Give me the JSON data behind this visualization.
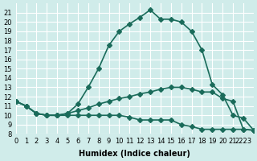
{
  "xlabel": "Humidex (Indice chaleur)",
  "ylabel": "",
  "bg_color": "#d0ecea",
  "line_color": "#1a6b5a",
  "grid_color": "#ffffff",
  "ylim": [
    8,
    22
  ],
  "xlim": [
    0,
    23
  ],
  "yticks": [
    8,
    9,
    10,
    11,
    12,
    13,
    14,
    15,
    16,
    17,
    18,
    19,
    20,
    21
  ],
  "xticks": [
    0,
    1,
    2,
    3,
    4,
    5,
    6,
    7,
    8,
    9,
    10,
    11,
    12,
    13,
    14,
    15,
    16,
    17,
    18,
    19,
    20,
    21,
    22
  ],
  "xtick_labels": [
    "0",
    "1",
    "2",
    "3",
    "4",
    "5",
    "6",
    "7",
    "8",
    "9",
    "10",
    "11",
    "12",
    "13",
    "14",
    "15",
    "16",
    "17",
    "18",
    "19",
    "20",
    "21",
    "2223"
  ],
  "line1_x": [
    0,
    1,
    2,
    3,
    4,
    5,
    6,
    7,
    8,
    9,
    10,
    11,
    12,
    13,
    14,
    15,
    16,
    17,
    18,
    19,
    20,
    21,
    22,
    23
  ],
  "line1_y": [
    11.5,
    11.0,
    10.2,
    10.0,
    10.0,
    10.2,
    11.2,
    13.0,
    15.0,
    17.5,
    19.0,
    19.8,
    20.5,
    21.3,
    20.3,
    20.3,
    20.0,
    19.0,
    17.0,
    13.3,
    12.2,
    10.0,
    9.7,
    8.4
  ],
  "line2_x": [
    0,
    1,
    2,
    3,
    4,
    5,
    6,
    7,
    8,
    9,
    10,
    11,
    12,
    13,
    14,
    15,
    16,
    17,
    18,
    19,
    20,
    21,
    22,
    23
  ],
  "line2_y": [
    11.5,
    11.0,
    10.2,
    10.0,
    10.0,
    10.2,
    10.5,
    10.8,
    11.2,
    11.5,
    11.8,
    12.0,
    12.3,
    12.5,
    12.8,
    13.0,
    13.0,
    12.8,
    12.5,
    12.5,
    11.8,
    11.5,
    8.5,
    8.4
  ],
  "line3_x": [
    0,
    1,
    2,
    3,
    4,
    5,
    6,
    7,
    8,
    9,
    10,
    11,
    12,
    13,
    14,
    15,
    16,
    17,
    18,
    19,
    20,
    21,
    22,
    23
  ],
  "line3_y": [
    11.5,
    11.0,
    10.2,
    10.0,
    10.0,
    10.0,
    10.0,
    10.0,
    10.0,
    10.0,
    10.0,
    9.8,
    9.5,
    9.5,
    9.5,
    9.5,
    9.0,
    8.8,
    8.5,
    8.5,
    8.5,
    8.5,
    8.5,
    8.4
  ],
  "marker": "D",
  "markersize": 3,
  "linewidth": 1.2,
  "axis_fontsize": 7,
  "tick_fontsize": 6
}
